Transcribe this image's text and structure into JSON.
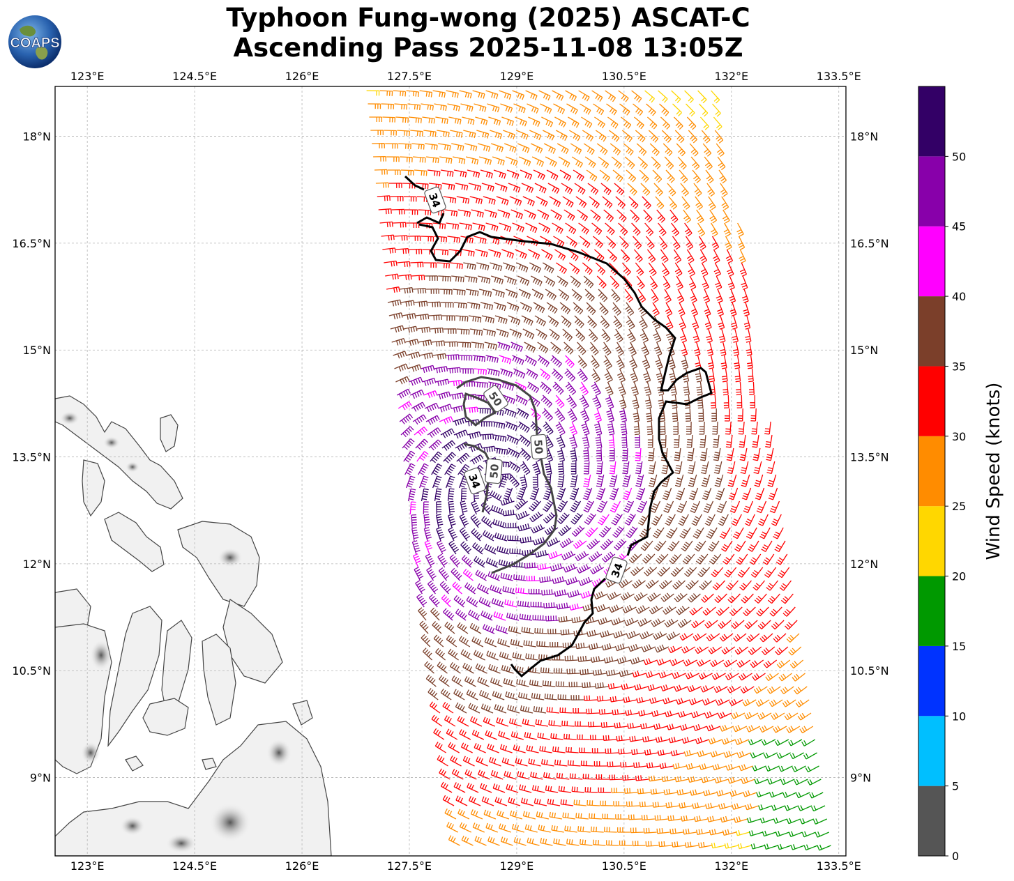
{
  "title": {
    "line1": "Typhoon Fung-wong (2025) ASCAT-C",
    "line2": "Ascending Pass 2025-11-08 13:05Z"
  },
  "logo": {
    "text": "COAPS",
    "icon": "globe-logo-icon"
  },
  "map": {
    "lon_ticks": [
      "123°E",
      "124.5°E",
      "126°E",
      "127.5°E",
      "129°E",
      "130.5°E",
      "132°E",
      "133.5°E"
    ],
    "lat_ticks": [
      "18°N",
      "16.5°N",
      "15°N",
      "13.5°N",
      "12°N",
      "10.5°N",
      "9°N"
    ],
    "lon_range": [
      122.55,
      133.6
    ],
    "lat_range": [
      7.9,
      18.7
    ],
    "gridlines": true,
    "landmass": "Philippines (grayscale terrain)",
    "contours": [
      {
        "label": "34",
        "color": "#000000"
      },
      {
        "label": "34",
        "color": "#000000"
      },
      {
        "label": "34",
        "color": "#000000"
      },
      {
        "label": "50",
        "color": "#444444"
      },
      {
        "label": "50",
        "color": "#444444"
      },
      {
        "label": "50",
        "color": "#444444"
      }
    ],
    "wind_barbs": "ASCAT-C wind barbs colored by speed"
  },
  "colorbar": {
    "label": "Wind Speed (knots)",
    "ticks": [
      "0",
      "5",
      "10",
      "15",
      "20",
      "25",
      "30",
      "35",
      "40",
      "45",
      "50"
    ],
    "bins": [
      {
        "range": [
          0,
          5
        ],
        "color": "#555555"
      },
      {
        "range": [
          5,
          10
        ],
        "color": "#00bfff"
      },
      {
        "range": [
          10,
          15
        ],
        "color": "#0033ff"
      },
      {
        "range": [
          15,
          20
        ],
        "color": "#009900"
      },
      {
        "range": [
          20,
          25
        ],
        "color": "#ffd700"
      },
      {
        "range": [
          25,
          30
        ],
        "color": "#ff8c00"
      },
      {
        "range": [
          30,
          35
        ],
        "color": "#ff0000"
      },
      {
        "range": [
          35,
          40
        ],
        "color": "#7b3f2a"
      },
      {
        "range": [
          40,
          45
        ],
        "color": "#ff00ff"
      },
      {
        "range": [
          45,
          50
        ],
        "color": "#8800aa"
      },
      {
        "range": [
          50,
          55
        ],
        "color": "#330066"
      }
    ]
  }
}
